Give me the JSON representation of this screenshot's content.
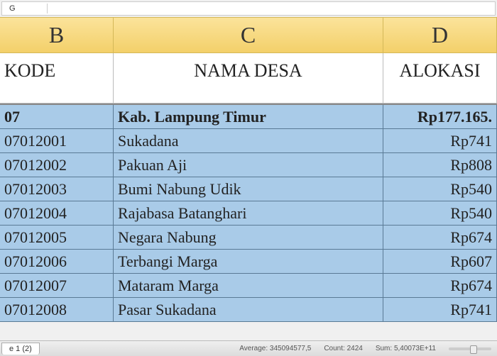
{
  "formula_bar": {
    "name_box": "G"
  },
  "columns": {
    "b": "B",
    "c": "C",
    "d": "D"
  },
  "headers": {
    "kode": "KODE",
    "nama": "NAMA DESA",
    "alokasi": "ALOKASI"
  },
  "rows": [
    {
      "kode": "07",
      "nama": "Kab.  Lampung  Timur",
      "alokasi": "Rp177.165.",
      "bold": true
    },
    {
      "kode": "07012001",
      "nama": "Sukadana",
      "alokasi": "Rp741",
      "bold": false
    },
    {
      "kode": "07012002",
      "nama": "Pakuan Aji",
      "alokasi": "Rp808",
      "bold": false
    },
    {
      "kode": "07012003",
      "nama": "Bumi Nabung  Udik",
      "alokasi": "Rp540",
      "bold": false
    },
    {
      "kode": "07012004",
      "nama": "Rajabasa  Batanghari",
      "alokasi": "Rp540",
      "bold": false
    },
    {
      "kode": "07012005",
      "nama": "Negara  Nabung",
      "alokasi": "Rp674",
      "bold": false
    },
    {
      "kode": "07012006",
      "nama": "Terbangi Marga",
      "alokasi": "Rp607",
      "bold": false
    },
    {
      "kode": "07012007",
      "nama": "Mataram  Marga",
      "alokasi": "Rp674",
      "bold": false
    },
    {
      "kode": "07012008",
      "nama": "Pasar Sukadana",
      "alokasi": "Rp741",
      "bold": false
    }
  ],
  "sheet_tab": "e 1 (2)",
  "status": {
    "average_label": "Average:",
    "average_value": "345094577,5",
    "count_label": "Count:",
    "count_value": "2424",
    "sum_label": "Sum:",
    "sum_value": "5,40073E+11"
  },
  "colors": {
    "col_header_bg": "#f6d67e",
    "data_bg": "#a9cbe8",
    "border": "#5a7a95"
  }
}
